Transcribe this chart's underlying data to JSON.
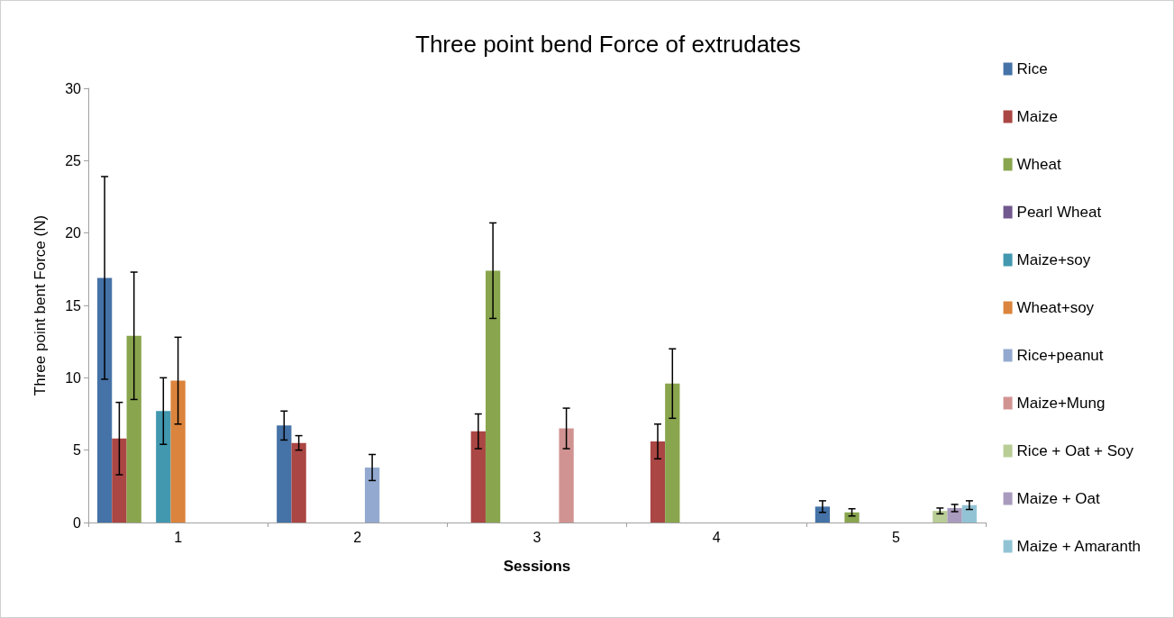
{
  "chart_data": {
    "type": "bar",
    "title": "Three point bend Force of extrudates",
    "xlabel": "Sessions",
    "ylabel": "Three point bent Force (N)",
    "categories": [
      "1",
      "2",
      "3",
      "4",
      "5"
    ],
    "series": [
      {
        "name": "Rice",
        "color": "#4572a7",
        "values": [
          16.9,
          6.7,
          null,
          null,
          1.1
        ],
        "errors": [
          7,
          1,
          null,
          null,
          0.4
        ]
      },
      {
        "name": "Maize",
        "color": "#aa4643",
        "values": [
          5.8,
          5.5,
          6.3,
          5.6,
          null
        ],
        "errors": [
          2.5,
          0.5,
          1.2,
          1.2,
          null
        ]
      },
      {
        "name": "Wheat",
        "color": "#89a54e",
        "values": [
          12.9,
          null,
          17.4,
          9.6,
          0.7
        ],
        "errors": [
          4.4,
          null,
          3.3,
          2.4,
          0.25
        ]
      },
      {
        "name": "Pearl Wheat",
        "color": "#71588f",
        "values": [
          null,
          null,
          null,
          null,
          null
        ]
      },
      {
        "name": "Maize+soy",
        "color": "#4198af",
        "values": [
          7.7,
          null,
          null,
          null,
          null
        ],
        "errors": [
          2.3,
          null,
          null,
          null,
          null
        ]
      },
      {
        "name": "Wheat+soy",
        "color": "#db843d",
        "values": [
          9.8,
          null,
          null,
          null,
          null
        ],
        "errors": [
          3,
          null,
          null,
          null,
          null
        ]
      },
      {
        "name": "Rice+peanut",
        "color": "#93a9cf",
        "values": [
          null,
          3.8,
          null,
          null,
          null
        ],
        "errors": [
          null,
          0.9,
          null,
          null,
          null
        ]
      },
      {
        "name": "Maize+Mung",
        "color": "#d19392",
        "values": [
          null,
          null,
          6.5,
          null,
          null
        ],
        "errors": [
          null,
          null,
          1.4,
          null,
          null
        ]
      },
      {
        "name": "Rice + Oat + Soy",
        "color": "#b9cd96",
        "values": [
          null,
          null,
          null,
          null,
          0.8
        ],
        "errors": [
          null,
          null,
          null,
          null,
          0.2
        ]
      },
      {
        "name": "Maize + Oat",
        "color": "#a99bbd",
        "values": [
          null,
          null,
          null,
          null,
          1
        ],
        "errors": [
          null,
          null,
          null,
          null,
          0.25
        ]
      },
      {
        "name": "Maize + Amaranth",
        "color": "#92c3d5",
        "values": [
          null,
          null,
          null,
          null,
          1.2
        ],
        "errors": [
          null,
          null,
          null,
          null,
          0.3
        ]
      }
    ],
    "ylim": [
      0,
      30
    ],
    "yticks": [
      0,
      5,
      10,
      15,
      20,
      25,
      30
    ],
    "grid": false,
    "legend": "right"
  }
}
